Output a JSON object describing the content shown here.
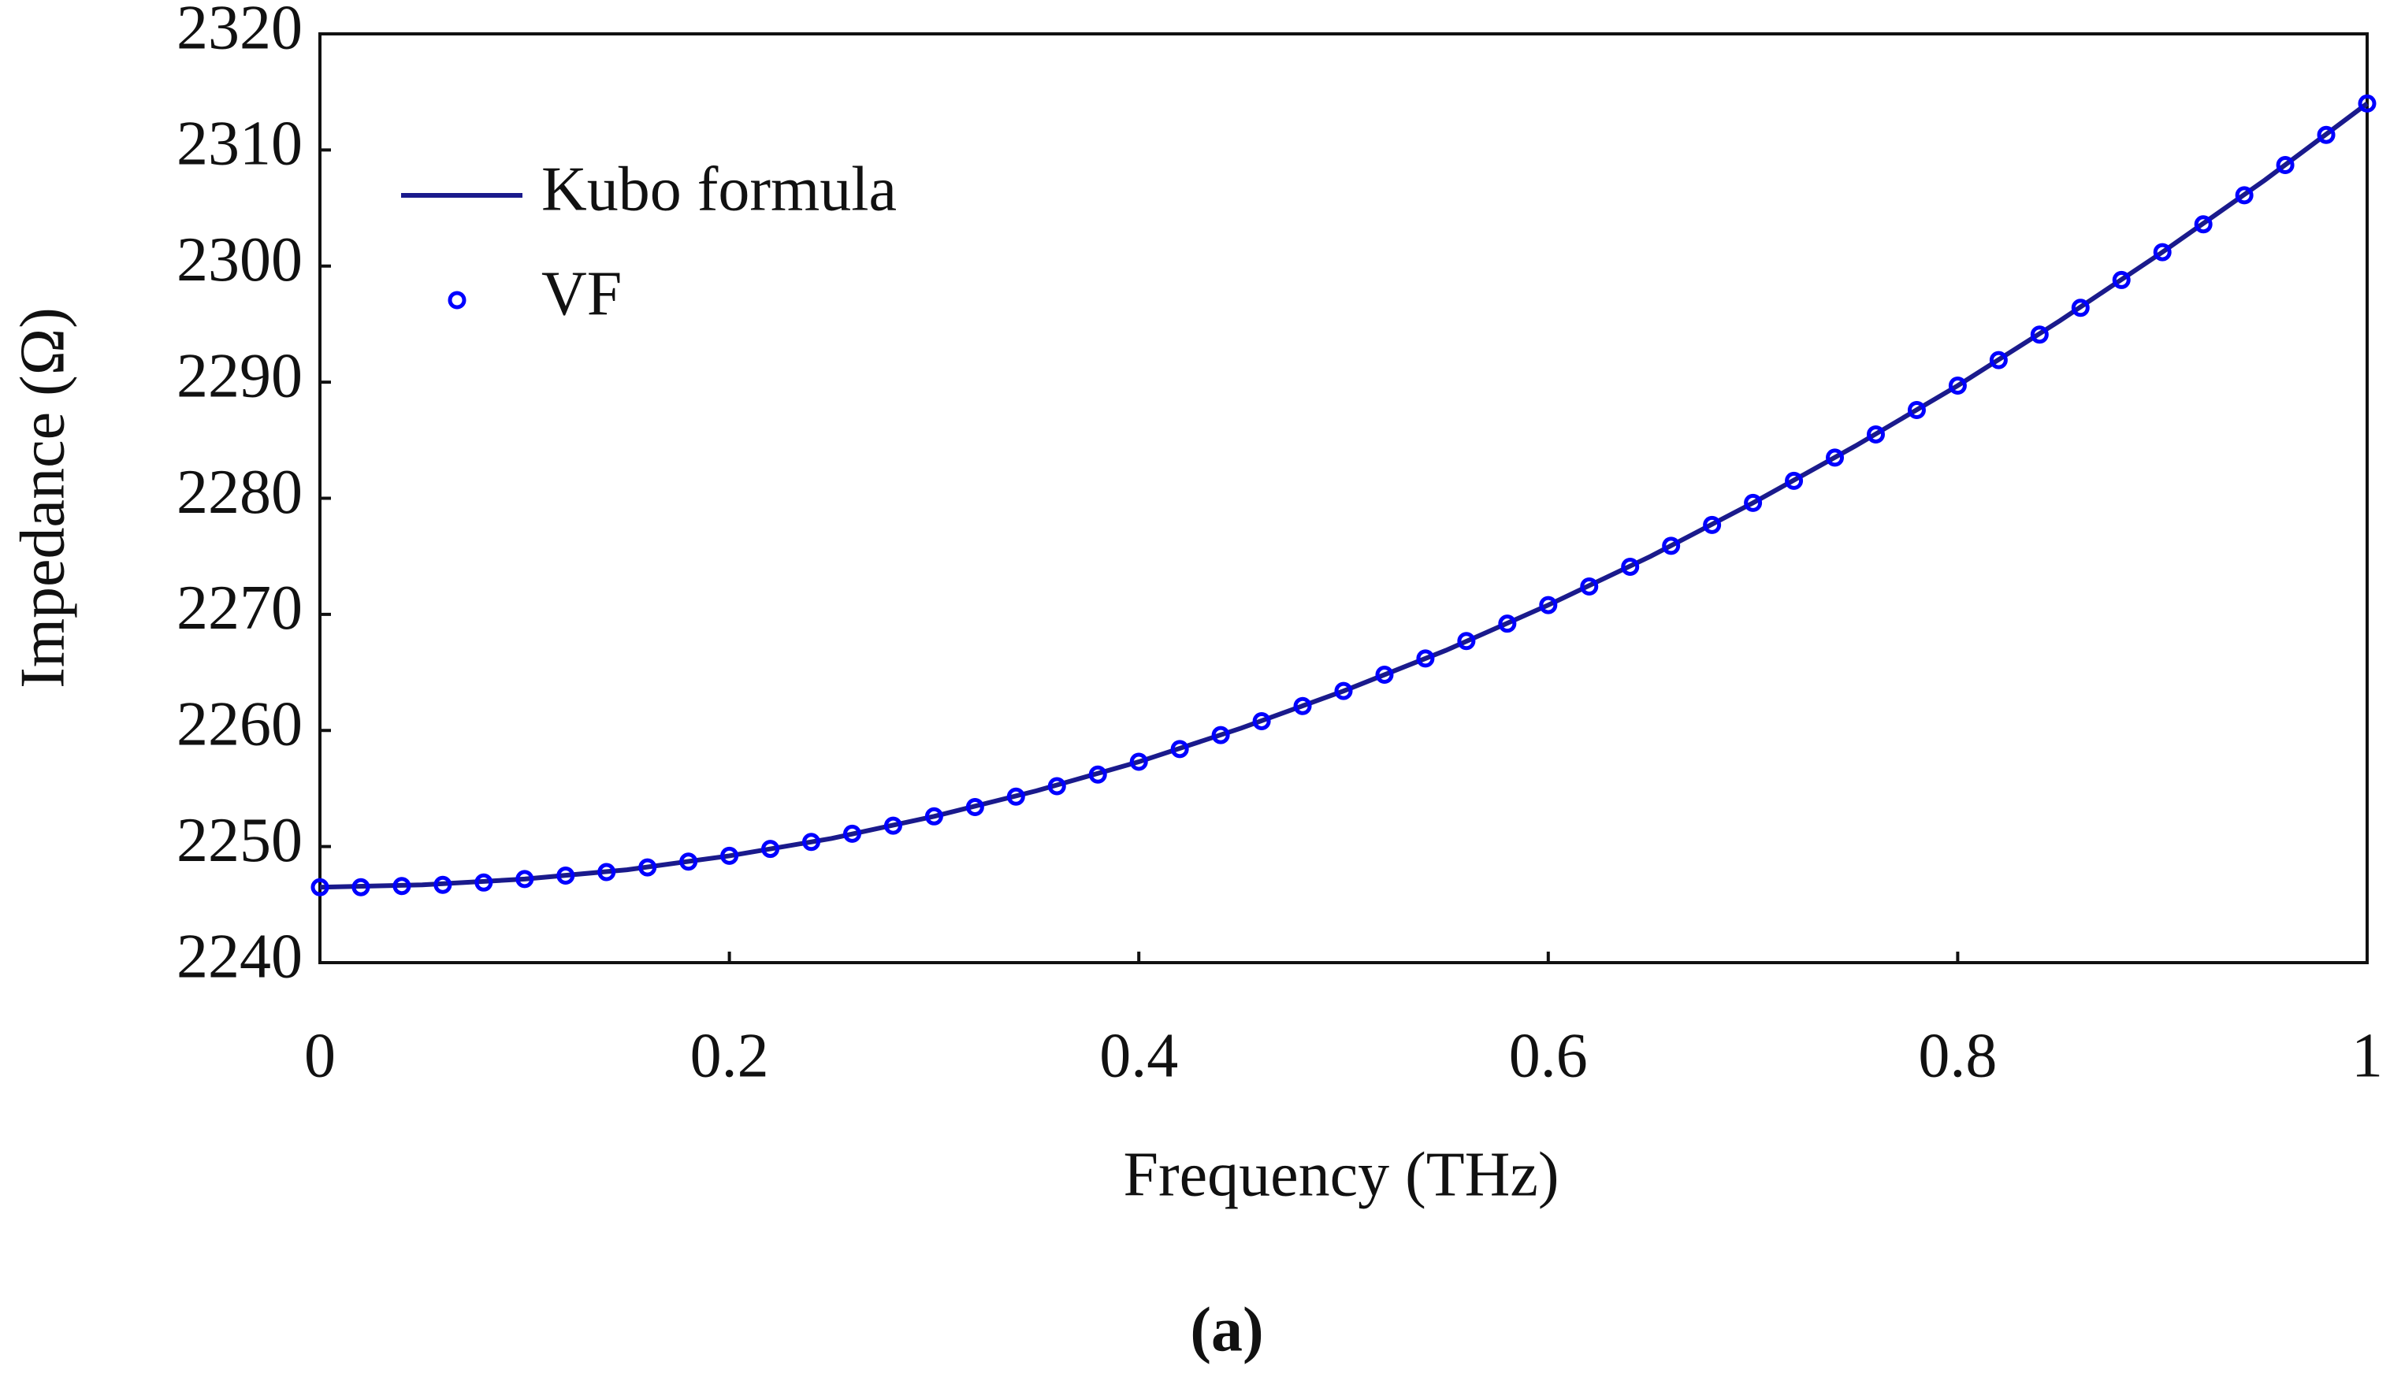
{
  "chart_data": {
    "type": "line",
    "xlabel": "Frequency (THz)",
    "ylabel": "Impedance (Ω)",
    "caption": "(a)",
    "xlim": [
      0,
      1
    ],
    "xticks": [
      0,
      0.2,
      0.4,
      0.6,
      0.8,
      1
    ],
    "ylim": [
      2240,
      2320
    ],
    "yticks": [
      2240,
      2250,
      2260,
      2270,
      2280,
      2290,
      2300,
      2310,
      2320
    ],
    "legend": "upper left",
    "series": [
      {
        "name": "Kubo formula",
        "color": "#1a1a8c",
        "style": "line",
        "x": [
          0,
          0.05,
          0.1,
          0.15,
          0.2,
          0.25,
          0.3,
          0.35,
          0.4,
          0.45,
          0.5,
          0.55,
          0.6,
          0.65,
          0.7,
          0.75,
          0.8,
          0.85,
          0.9,
          0.95,
          1
        ],
        "values": [
          2246.5,
          2246.7,
          2247.2,
          2248.0,
          2249.2,
          2250.7,
          2252.6,
          2254.8,
          2257.3,
          2260.2,
          2263.4,
          2266.9,
          2270.8,
          2275.0,
          2279.6,
          2284.5,
          2289.7,
          2295.3,
          2301.2,
          2307.4,
          2314.0
        ]
      },
      {
        "name": "VF",
        "color": "#0000ff",
        "style": "marker",
        "x": [
          0,
          0.02,
          0.04,
          0.06,
          0.08,
          0.1,
          0.12,
          0.14,
          0.16,
          0.18,
          0.2,
          0.22,
          0.24,
          0.26,
          0.28,
          0.3,
          0.32,
          0.34,
          0.36,
          0.38,
          0.4,
          0.42,
          0.44,
          0.46,
          0.48,
          0.5,
          0.52,
          0.54,
          0.56,
          0.58,
          0.6,
          0.62,
          0.64,
          0.66,
          0.68,
          0.7,
          0.72,
          0.74,
          0.76,
          0.78,
          0.8,
          0.82,
          0.84,
          0.86,
          0.88,
          0.9,
          0.92,
          0.94,
          0.96,
          0.98,
          1
        ],
        "values": [
          2246.5,
          2246.5,
          2246.6,
          2246.7,
          2246.9,
          2247.2,
          2247.5,
          2247.8,
          2248.2,
          2248.7,
          2249.2,
          2249.8,
          2250.4,
          2251.1,
          2251.8,
          2252.6,
          2253.4,
          2254.3,
          2255.2,
          2256.2,
          2257.3,
          2258.4,
          2259.6,
          2260.8,
          2262.1,
          2263.4,
          2264.8,
          2266.2,
          2267.7,
          2269.2,
          2270.8,
          2272.4,
          2274.1,
          2275.9,
          2277.7,
          2279.6,
          2281.5,
          2283.5,
          2285.5,
          2287.6,
          2289.7,
          2291.9,
          2294.1,
          2296.4,
          2298.8,
          2301.2,
          2303.6,
          2306.1,
          2308.7,
          2311.3,
          2314.0
        ]
      }
    ]
  }
}
